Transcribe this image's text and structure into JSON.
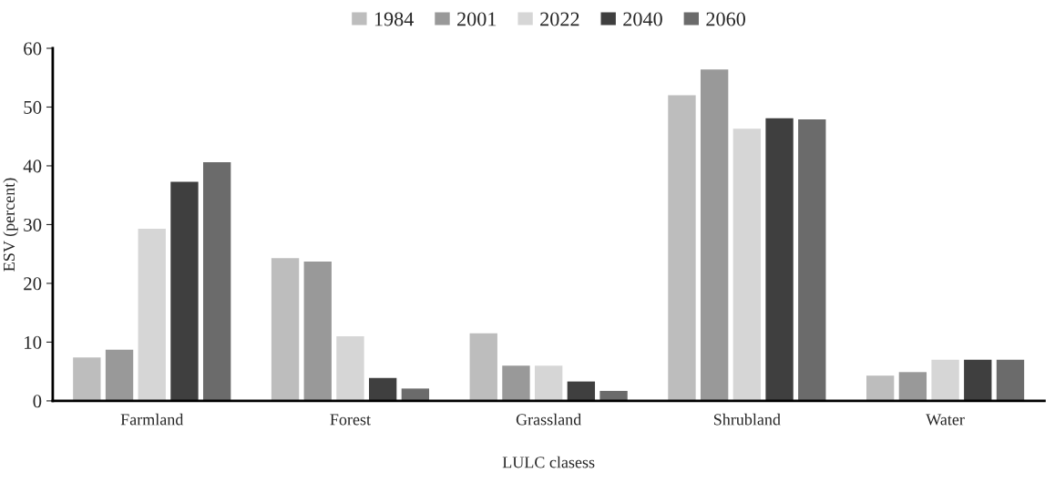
{
  "chart_data": {
    "type": "bar",
    "xlabel": "LULC clasess",
    "ylabel": "ESV (percent)",
    "categories": [
      "Farmland",
      "Forest",
      "Grassland",
      "Shrubland",
      "Water"
    ],
    "series": [
      {
        "name": "1984",
        "color": "#bdbdbd",
        "values": [
          7.4,
          24.3,
          11.5,
          52.0,
          4.3
        ]
      },
      {
        "name": "2001",
        "color": "#999999",
        "values": [
          8.7,
          23.7,
          6.0,
          56.4,
          4.9
        ]
      },
      {
        "name": "2022",
        "color": "#d6d6d6",
        "values": [
          29.3,
          11.0,
          6.0,
          46.3,
          7.0
        ]
      },
      {
        "name": "2040",
        "color": "#3f3f3f",
        "values": [
          37.3,
          3.9,
          3.3,
          48.1,
          7.0
        ]
      },
      {
        "name": "2060",
        "color": "#6b6b6b",
        "values": [
          40.6,
          2.1,
          1.7,
          47.9,
          7.0
        ]
      }
    ],
    "ylim": [
      0,
      60
    ],
    "yticks": [
      0,
      10,
      20,
      30,
      40,
      50,
      60
    ],
    "grid": false,
    "legend": "top"
  }
}
